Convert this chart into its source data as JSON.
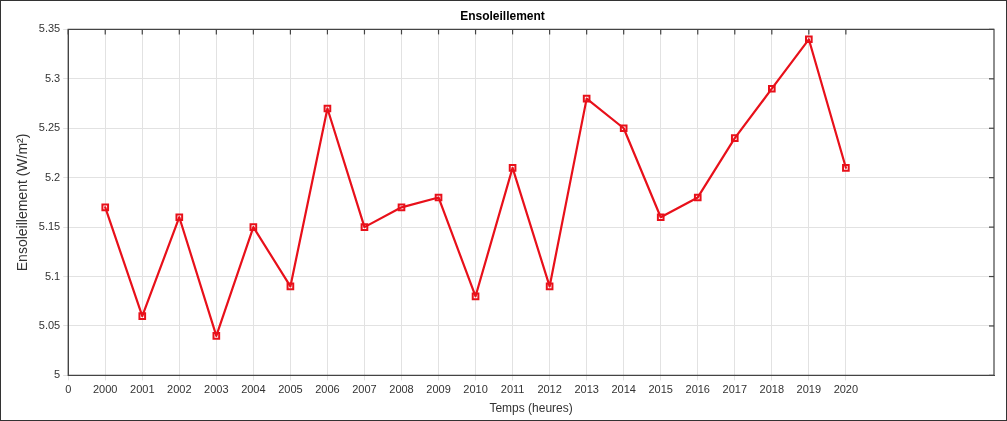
{
  "chart_data": {
    "type": "line",
    "title": "Ensoleillement",
    "xlabel": "Temps (heures)",
    "ylabel": "Ensoleillement (W/m²)",
    "categories": [
      "0",
      "2000",
      "2001",
      "2002",
      "2003",
      "2004",
      "2005",
      "2006",
      "2007",
      "2008",
      "2009",
      "2010",
      "2011",
      "2012",
      "2013",
      "2014",
      "2015",
      "2016",
      "2017",
      "2018",
      "2019",
      "2020",
      null,
      null,
      null,
      null
    ],
    "series": [
      {
        "color": "#e8101a",
        "values": [
          null,
          5.17,
          5.06,
          5.16,
          5.04,
          5.15,
          5.09,
          5.27,
          5.15,
          5.17,
          5.18,
          5.08,
          5.21,
          5.09,
          5.28,
          5.25,
          5.16,
          5.18,
          5.24,
          5.29,
          5.34,
          5.21,
          null,
          null,
          null,
          null
        ]
      }
    ],
    "ylim": [
      5,
      5.35
    ],
    "yticks": [
      5,
      5.05,
      5.1,
      5.15,
      5.2,
      5.25,
      5.3,
      5.35
    ],
    "grid": true,
    "marker": "square",
    "line_style": "solid"
  }
}
